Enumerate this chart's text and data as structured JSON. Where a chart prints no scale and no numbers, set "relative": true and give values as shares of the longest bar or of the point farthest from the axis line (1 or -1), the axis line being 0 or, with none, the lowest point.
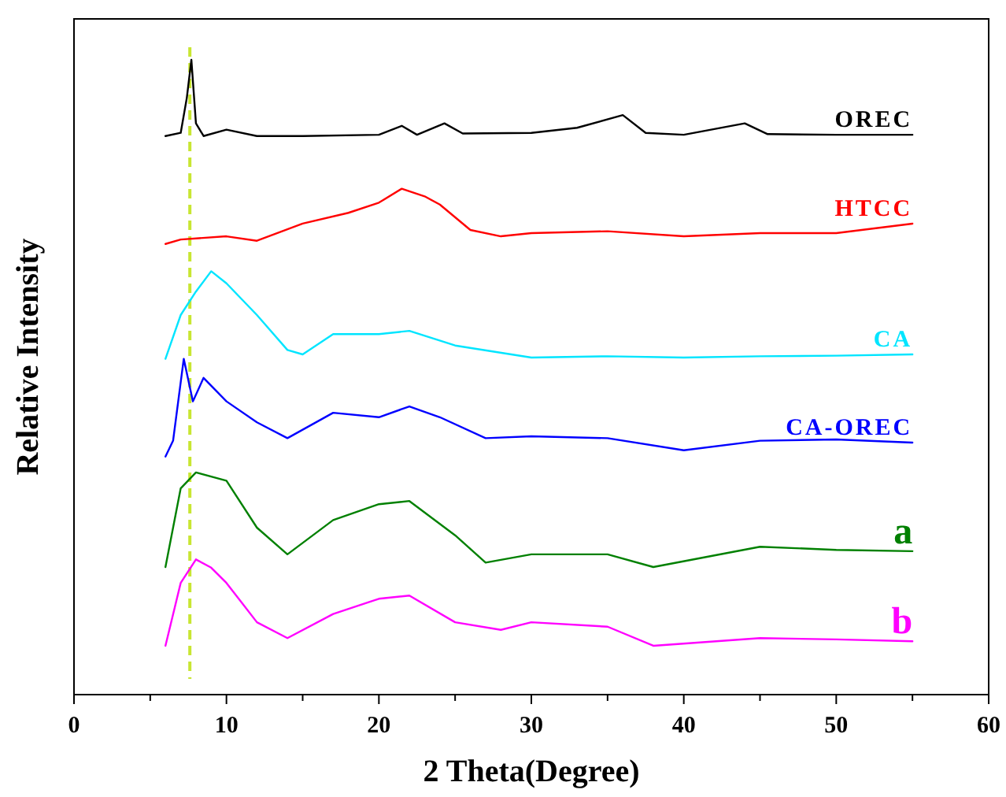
{
  "chart_data": {
    "type": "line",
    "xlabel": "2 Theta(Degree)",
    "ylabel": "Relative Intensity",
    "relative": true,
    "xlim": [
      0,
      60
    ],
    "xticks": [
      0,
      {
        "value": 5,
        "label": null
      },
      10,
      {
        "value": 15,
        "label": null
      },
      20,
      {
        "value": 25,
        "label": null
      },
      30,
      {
        "value": 35,
        "label": null
      },
      40,
      {
        "value": 45,
        "label": null
      },
      50,
      {
        "value": 55,
        "label": null
      },
      60
    ],
    "ref_lines": [
      {
        "axis": "x",
        "value": 7.6,
        "color": "#c8e632",
        "line_style": "dashed"
      }
    ],
    "series": [
      {
        "name": "OREC",
        "color": "#000000",
        "x": [
          6,
          7,
          7.4,
          7.7,
          8,
          8.5,
          10,
          12,
          15,
          20,
          21.5,
          22.5,
          24.3,
          25.5,
          30,
          33,
          36,
          37.5,
          40,
          44,
          45.5,
          50,
          55
        ],
        "values": [
          0.88,
          0.885,
          0.94,
          1.0,
          0.9,
          0.88,
          0.89,
          0.88,
          0.88,
          0.882,
          0.896,
          0.882,
          0.9,
          0.884,
          0.885,
          0.893,
          0.913,
          0.885,
          0.882,
          0.9,
          0.883,
          0.882,
          0.882
        ]
      },
      {
        "name": "HTCC",
        "color": "#ff0000",
        "x": [
          6,
          7,
          10,
          12,
          15,
          18,
          20,
          21.5,
          23,
          24,
          26,
          28,
          30,
          35,
          40,
          45,
          50,
          55
        ],
        "values": [
          0.71,
          0.717,
          0.722,
          0.715,
          0.742,
          0.759,
          0.775,
          0.797,
          0.785,
          0.772,
          0.732,
          0.722,
          0.727,
          0.73,
          0.722,
          0.727,
          0.727,
          0.742
        ]
      },
      {
        "name": "CA",
        "color": "#00e5ff",
        "x": [
          6,
          7,
          8,
          9,
          10,
          12,
          14,
          15,
          17,
          20,
          22,
          25,
          30,
          35,
          40,
          45,
          50,
          55
        ],
        "values": [
          0.529,
          0.598,
          0.635,
          0.667,
          0.648,
          0.598,
          0.543,
          0.536,
          0.568,
          0.568,
          0.573,
          0.55,
          0.531,
          0.533,
          0.531,
          0.533,
          0.534,
          0.536
        ]
      },
      {
        "name": "CA-OREC",
        "color": "#0000ff",
        "x": [
          6,
          6.5,
          7.2,
          7.8,
          8.5,
          10,
          12,
          14,
          17,
          20,
          22,
          24,
          27,
          30,
          35,
          40,
          45,
          50,
          55
        ],
        "values": [
          0.375,
          0.4,
          0.529,
          0.462,
          0.499,
          0.462,
          0.429,
          0.404,
          0.444,
          0.437,
          0.454,
          0.437,
          0.404,
          0.407,
          0.404,
          0.385,
          0.4,
          0.402,
          0.397
        ]
      },
      {
        "name": "a",
        "color": "#008000",
        "x": [
          6,
          7,
          8,
          10,
          12,
          14,
          17,
          20,
          22,
          25,
          27,
          30,
          35,
          38,
          45,
          50,
          55
        ],
        "values": [
          0.201,
          0.325,
          0.35,
          0.337,
          0.263,
          0.221,
          0.275,
          0.3,
          0.305,
          0.251,
          0.208,
          0.221,
          0.221,
          0.201,
          0.233,
          0.228,
          0.226
        ]
      },
      {
        "name": "b",
        "color": "#ff00ff",
        "x": [
          6,
          7,
          8,
          9,
          10,
          12,
          14,
          17,
          20,
          22,
          25,
          28,
          30,
          35,
          38,
          45,
          50,
          55
        ],
        "values": [
          0.077,
          0.176,
          0.213,
          0.2,
          0.176,
          0.114,
          0.089,
          0.127,
          0.151,
          0.156,
          0.114,
          0.102,
          0.114,
          0.107,
          0.077,
          0.089,
          0.087,
          0.084
        ]
      }
    ]
  }
}
